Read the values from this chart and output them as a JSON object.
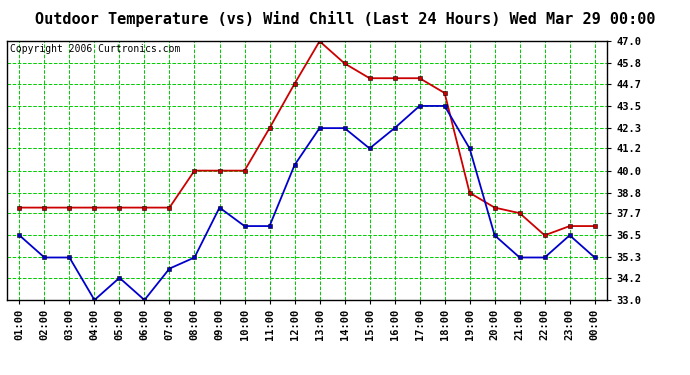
{
  "title": "Outdoor Temperature (vs) Wind Chill (Last 24 Hours) Wed Mar 29 00:00",
  "copyright": "Copyright 2006 Curtronics.com",
  "hours": [
    "01:00",
    "02:00",
    "03:00",
    "04:00",
    "05:00",
    "06:00",
    "07:00",
    "08:00",
    "09:00",
    "10:00",
    "11:00",
    "12:00",
    "13:00",
    "14:00",
    "15:00",
    "16:00",
    "17:00",
    "18:00",
    "19:00",
    "20:00",
    "21:00",
    "22:00",
    "23:00",
    "00:00"
  ],
  "temp": [
    38.0,
    38.0,
    38.0,
    38.0,
    38.0,
    38.0,
    38.0,
    40.0,
    40.0,
    40.0,
    42.3,
    44.7,
    47.0,
    45.8,
    45.0,
    45.0,
    45.0,
    44.2,
    38.8,
    38.0,
    37.7,
    36.5,
    37.0,
    37.0
  ],
  "windchill": [
    36.5,
    35.3,
    35.3,
    33.0,
    34.2,
    33.0,
    34.7,
    35.3,
    38.0,
    37.0,
    37.0,
    40.3,
    42.3,
    42.3,
    41.2,
    42.3,
    43.5,
    43.5,
    41.2,
    36.5,
    35.3,
    35.3,
    36.5,
    35.3
  ],
  "temp_color": "#cc0000",
  "windchill_color": "#0000cc",
  "bg_color": "#ffffff",
  "plot_bg": "#ffffff",
  "grid_color": "#00cc00",
  "ylim_min": 33.0,
  "ylim_max": 47.0,
  "yticks": [
    33.0,
    34.2,
    35.3,
    36.5,
    37.7,
    38.8,
    40.0,
    41.2,
    42.3,
    43.5,
    44.7,
    45.8,
    47.0
  ],
  "title_fontsize": 11,
  "copyright_fontsize": 7,
  "tick_fontsize": 7.5
}
